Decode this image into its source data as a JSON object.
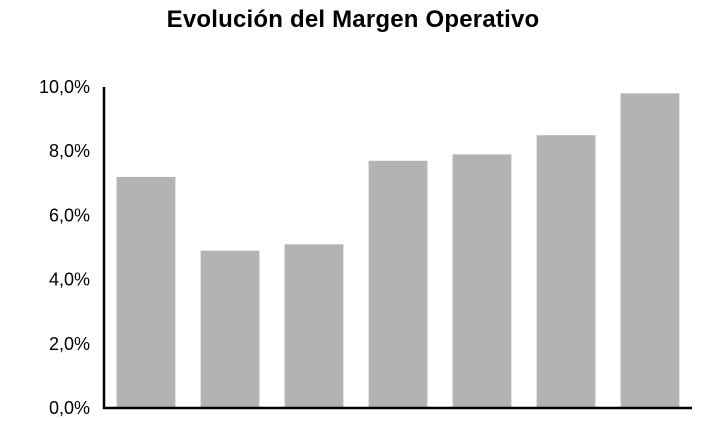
{
  "chart_data": {
    "type": "bar",
    "title": "Evolución del Margen Operativo",
    "xlabel": "",
    "ylabel": "",
    "categories": [
      "",
      "",
      "",
      "",
      "",
      "",
      ""
    ],
    "values": [
      0.072,
      0.049,
      0.051,
      0.077,
      0.079,
      0.085,
      0.098
    ],
    "ylim": [
      0,
      0.1
    ],
    "yticks": [
      0,
      0.02,
      0.04,
      0.06,
      0.08,
      0.1
    ],
    "ytick_labels": [
      "0,0%",
      "2,0%",
      "4,0%",
      "6,0%",
      "8,0%",
      "10,0%"
    ],
    "grid": false,
    "legend": "none",
    "colors": {
      "bar": "#b3b3b3",
      "axis": "#000000",
      "text": "#000000"
    }
  }
}
